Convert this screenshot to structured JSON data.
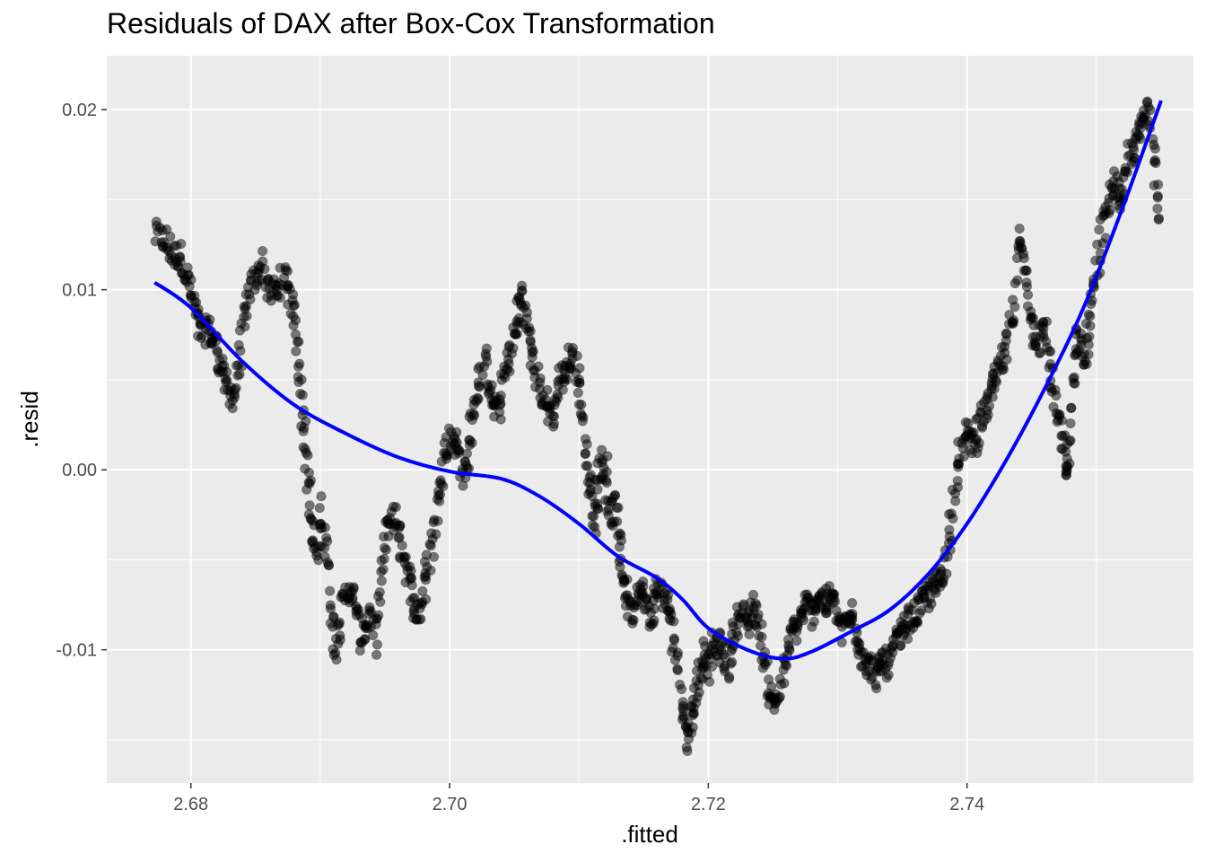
{
  "chart_data": {
    "type": "scatter",
    "title": "Residuals of DAX after Box-Cox Transformation",
    "xlabel": ".fitted",
    "ylabel": ".resid",
    "xlim": [
      2.6735,
      2.7575
    ],
    "ylim": [
      -0.0174,
      0.023
    ],
    "x_ticks": [
      2.68,
      2.7,
      2.72,
      2.74
    ],
    "x_tick_labels": [
      "2.68",
      "2.70",
      "2.72",
      "2.74"
    ],
    "y_ticks": [
      -0.01,
      0.0,
      0.01,
      0.02
    ],
    "y_tick_labels": [
      "-0.01",
      "0.00",
      "0.01",
      "0.02"
    ],
    "grid": true,
    "background": "#ebebeb",
    "point_color": "#000000",
    "point_alpha": 0.5,
    "smooth_color": "#0000ff",
    "residual_path": [
      [
        2.6772,
        0.013
      ],
      [
        2.678,
        0.0128
      ],
      [
        2.6786,
        0.0118
      ],
      [
        2.6792,
        0.012
      ],
      [
        2.6798,
        0.0105
      ],
      [
        2.6803,
        0.009
      ],
      [
        2.6808,
        0.0075
      ],
      [
        2.6813,
        0.0078
      ],
      [
        2.6818,
        0.0072
      ],
      [
        2.6823,
        0.006
      ],
      [
        2.6828,
        0.0045
      ],
      [
        2.6833,
        0.004
      ],
      [
        2.6838,
        0.0065
      ],
      [
        2.6843,
        0.0092
      ],
      [
        2.6849,
        0.0105
      ],
      [
        2.6855,
        0.0115
      ],
      [
        2.6861,
        0.0098
      ],
      [
        2.6867,
        0.01
      ],
      [
        2.6873,
        0.0108
      ],
      [
        2.6878,
        0.0092
      ],
      [
        2.6883,
        0.007
      ],
      [
        2.6887,
        0.003
      ],
      [
        2.689,
        0.0005
      ],
      [
        2.6893,
        -0.003
      ],
      [
        2.6897,
        -0.005
      ],
      [
        2.6902,
        -0.002
      ],
      [
        2.6906,
        -0.006
      ],
      [
        2.6911,
        -0.01
      ],
      [
        2.6916,
        -0.008
      ],
      [
        2.6922,
        -0.0065
      ],
      [
        2.6927,
        -0.0075
      ],
      [
        2.6932,
        -0.0095
      ],
      [
        2.6937,
        -0.008
      ],
      [
        2.6942,
        -0.0095
      ],
      [
        2.6947,
        -0.006
      ],
      [
        2.6952,
        -0.003
      ],
      [
        2.6957,
        -0.0025
      ],
      [
        2.6962,
        -0.004
      ],
      [
        2.6967,
        -0.0055
      ],
      [
        2.6972,
        -0.0075
      ],
      [
        2.6977,
        -0.008
      ],
      [
        2.6982,
        -0.006
      ],
      [
        2.6987,
        -0.004
      ],
      [
        2.6992,
        -0.001
      ],
      [
        2.6997,
        0.001
      ],
      [
        2.7002,
        0.002
      ],
      [
        2.7007,
        0.001
      ],
      [
        2.7012,
        -0.0005
      ],
      [
        2.7017,
        0.0025
      ],
      [
        2.7022,
        0.0045
      ],
      [
        2.7027,
        0.006
      ],
      [
        2.7032,
        0.004
      ],
      [
        2.7037,
        0.003
      ],
      [
        2.7042,
        0.005
      ],
      [
        2.7047,
        0.0065
      ],
      [
        2.7052,
        0.008
      ],
      [
        2.7055,
        0.01
      ],
      [
        2.706,
        0.008
      ],
      [
        2.7065,
        0.006
      ],
      [
        2.707,
        0.0045
      ],
      [
        2.7075,
        0.0035
      ],
      [
        2.708,
        0.003
      ],
      [
        2.7085,
        0.005
      ],
      [
        2.709,
        0.0055
      ],
      [
        2.7095,
        0.0065
      ],
      [
        2.71,
        0.005
      ],
      [
        2.7104,
        0.002
      ],
      [
        2.7108,
        -0.001
      ],
      [
        2.7112,
        -0.003
      ],
      [
        2.7116,
        0.0
      ],
      [
        2.712,
        0.0005
      ],
      [
        2.7124,
        -0.0025
      ],
      [
        2.7128,
        -0.002
      ],
      [
        2.7132,
        -0.005
      ],
      [
        2.7136,
        -0.0065
      ],
      [
        2.714,
        -0.008
      ],
      [
        2.7145,
        -0.0065
      ],
      [
        2.715,
        -0.007
      ],
      [
        2.7155,
        -0.0085
      ],
      [
        2.716,
        -0.0065
      ],
      [
        2.7165,
        -0.007
      ],
      [
        2.717,
        -0.008
      ],
      [
        2.7175,
        -0.01
      ],
      [
        2.718,
        -0.013
      ],
      [
        2.7184,
        -0.015
      ],
      [
        2.7188,
        -0.0135
      ],
      [
        2.7192,
        -0.012
      ],
      [
        2.7196,
        -0.01
      ],
      [
        2.72,
        -0.011
      ],
      [
        2.7205,
        -0.0095
      ],
      [
        2.721,
        -0.01
      ],
      [
        2.7215,
        -0.011
      ],
      [
        2.722,
        -0.009
      ],
      [
        2.7225,
        -0.008
      ],
      [
        2.723,
        -0.0085
      ],
      [
        2.7235,
        -0.0075
      ],
      [
        2.724,
        -0.009
      ],
      [
        2.7245,
        -0.0115
      ],
      [
        2.725,
        -0.013
      ],
      [
        2.7255,
        -0.0125
      ],
      [
        2.726,
        -0.0105
      ],
      [
        2.7265,
        -0.009
      ],
      [
        2.727,
        -0.0085
      ],
      [
        2.7275,
        -0.0075
      ],
      [
        2.728,
        -0.008
      ],
      [
        2.7285,
        -0.007
      ],
      [
        2.729,
        -0.0075
      ],
      [
        2.7295,
        -0.007
      ],
      [
        2.73,
        -0.008
      ],
      [
        2.7305,
        -0.009
      ],
      [
        2.731,
        -0.008
      ],
      [
        2.7315,
        -0.009
      ],
      [
        2.732,
        -0.0105
      ],
      [
        2.7325,
        -0.011
      ],
      [
        2.733,
        -0.0115
      ],
      [
        2.7335,
        -0.0105
      ],
      [
        2.734,
        -0.011
      ],
      [
        2.7345,
        -0.0095
      ],
      [
        2.735,
        -0.009
      ],
      [
        2.7355,
        -0.0085
      ],
      [
        2.736,
        -0.008
      ],
      [
        2.7365,
        -0.0075
      ],
      [
        2.737,
        -0.007
      ],
      [
        2.7375,
        -0.0065
      ],
      [
        2.738,
        -0.006
      ],
      [
        2.7385,
        -0.0045
      ],
      [
        2.739,
        -0.001
      ],
      [
        2.7395,
        0.001
      ],
      [
        2.74,
        0.002
      ],
      [
        2.7405,
        0.0015
      ],
      [
        2.741,
        0.0025
      ],
      [
        2.7415,
        0.0035
      ],
      [
        2.742,
        0.0045
      ],
      [
        2.7425,
        0.0055
      ],
      [
        2.743,
        0.0065
      ],
      [
        2.7435,
        0.009
      ],
      [
        2.744,
        0.013
      ],
      [
        2.7445,
        0.011
      ],
      [
        2.745,
        0.008
      ],
      [
        2.7455,
        0.007
      ],
      [
        2.746,
        0.008
      ],
      [
        2.7465,
        0.005
      ],
      [
        2.747,
        0.003
      ],
      [
        2.7475,
        0.001
      ],
      [
        2.7478,
        -0.0005
      ],
      [
        2.7482,
        0.005
      ],
      [
        2.7486,
        0.0075
      ],
      [
        2.749,
        0.006
      ],
      [
        2.7495,
        0.0085
      ],
      [
        2.75,
        0.011
      ],
      [
        2.7505,
        0.0135
      ],
      [
        2.751,
        0.015
      ],
      [
        2.7515,
        0.016
      ],
      [
        2.752,
        0.0145
      ],
      [
        2.7525,
        0.0175
      ],
      [
        2.753,
        0.018
      ],
      [
        2.7535,
        0.019
      ],
      [
        2.754,
        0.0205
      ],
      [
        2.7545,
        0.0175
      ],
      [
        2.755,
        0.013
      ]
    ],
    "smooth_line": [
      [
        2.6772,
        0.0104
      ],
      [
        2.68,
        0.009
      ],
      [
        2.684,
        0.006
      ],
      [
        2.688,
        0.0036
      ],
      [
        2.692,
        0.002
      ],
      [
        2.696,
        0.0007
      ],
      [
        2.7,
        -0.0001
      ],
      [
        2.704,
        -0.0005
      ],
      [
        2.707,
        -0.0015
      ],
      [
        2.71,
        -0.003
      ],
      [
        2.713,
        -0.0048
      ],
      [
        2.716,
        -0.006
      ],
      [
        2.718,
        -0.0072
      ],
      [
        2.72,
        -0.0088
      ],
      [
        2.723,
        -0.01
      ],
      [
        2.7258,
        -0.0105
      ],
      [
        2.728,
        -0.0101
      ],
      [
        2.731,
        -0.009
      ],
      [
        2.734,
        -0.0078
      ],
      [
        2.737,
        -0.0058
      ],
      [
        2.74,
        -0.003
      ],
      [
        2.743,
        0.0005
      ],
      [
        2.746,
        0.0045
      ],
      [
        2.749,
        0.009
      ],
      [
        2.752,
        0.0145
      ],
      [
        2.755,
        0.0205
      ]
    ]
  }
}
